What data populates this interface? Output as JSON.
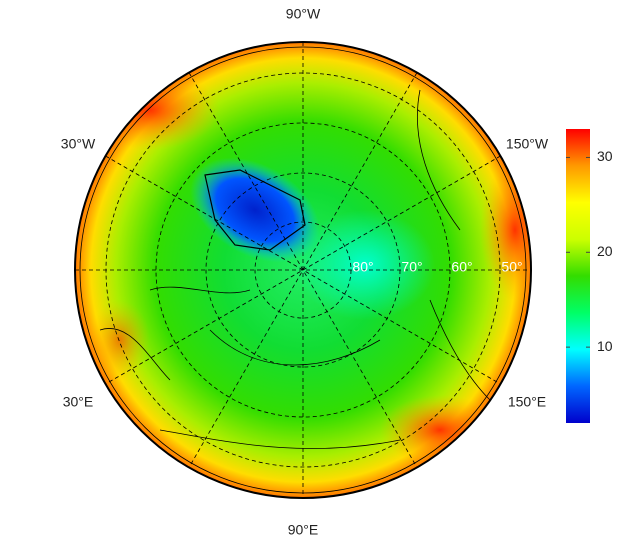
{
  "map": {
    "longitude_labels": [
      "90°W",
      "30°W",
      "150°W",
      "30°E",
      "150°E",
      "90°E"
    ],
    "latitude_labels": [
      "80°",
      "70°",
      "60°",
      "50°"
    ]
  },
  "colorbar": {
    "lim": [
      2,
      33
    ],
    "ticks": [
      10,
      20,
      30
    ],
    "colors": [
      "#0000cc",
      "#0066ff",
      "#00ffff",
      "#00ff66",
      "#33dd00",
      "#ccff00",
      "#ffff00",
      "#ff9900",
      "#ff0000"
    ]
  }
}
